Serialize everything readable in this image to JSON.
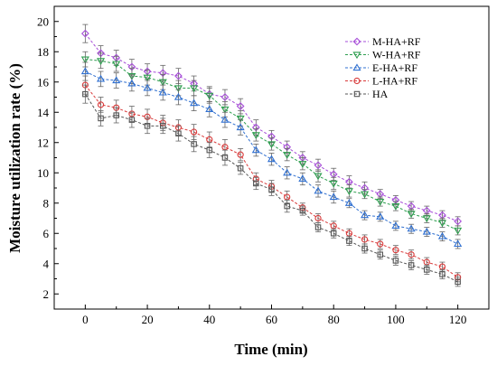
{
  "chart_data": {
    "type": "line",
    "xlabel": "Time (min)",
    "ylabel": "Moisture utilization rate (%)",
    "xlim": [
      -10,
      130
    ],
    "ylim": [
      1,
      21
    ],
    "xticks": [
      0,
      20,
      40,
      60,
      80,
      100,
      120
    ],
    "yticks": [
      2,
      4,
      6,
      8,
      10,
      12,
      14,
      16,
      18,
      20
    ],
    "legend_position": "top-right",
    "error_bars": true,
    "x": [
      0,
      5,
      10,
      15,
      20,
      25,
      30,
      35,
      40,
      45,
      50,
      55,
      60,
      65,
      70,
      75,
      80,
      85,
      90,
      95,
      100,
      105,
      110,
      115,
      120
    ],
    "series": [
      {
        "name": "M-HA+RF",
        "color": "#a64cd8",
        "marker": "diamond",
        "values": [
          19.2,
          17.9,
          17.6,
          17.0,
          16.7,
          16.6,
          16.4,
          15.9,
          15.2,
          15.0,
          14.4,
          13.0,
          12.4,
          11.7,
          11.0,
          10.5,
          9.9,
          9.4,
          9.0,
          8.6,
          8.2,
          7.8,
          7.5,
          7.2,
          6.8
        ],
        "errors": [
          0.6,
          0.5,
          0.5,
          0.5,
          0.5,
          0.5,
          0.5,
          0.5,
          0.5,
          0.5,
          0.5,
          0.5,
          0.4,
          0.4,
          0.4,
          0.4,
          0.4,
          0.4,
          0.4,
          0.3,
          0.3,
          0.3,
          0.3,
          0.3,
          0.3
        ]
      },
      {
        "name": "W-HA+RF",
        "color": "#2e9e4f",
        "marker": "triangle-down",
        "values": [
          17.5,
          17.4,
          17.2,
          16.4,
          16.3,
          16.0,
          15.6,
          15.6,
          15.1,
          14.2,
          13.6,
          12.5,
          11.9,
          11.2,
          10.6,
          9.8,
          9.3,
          8.8,
          8.6,
          8.1,
          7.8,
          7.3,
          7.0,
          6.7,
          6.2
        ],
        "errors": [
          0.5,
          0.5,
          0.5,
          0.5,
          0.5,
          0.5,
          0.5,
          0.5,
          0.5,
          0.5,
          0.5,
          0.4,
          0.4,
          0.4,
          0.4,
          0.4,
          0.4,
          0.4,
          0.3,
          0.3,
          0.3,
          0.3,
          0.3,
          0.3,
          0.3
        ]
      },
      {
        "name": "E-HA+RF",
        "color": "#2f6fd0",
        "marker": "triangle-up",
        "values": [
          16.7,
          16.2,
          16.1,
          15.9,
          15.6,
          15.3,
          15.0,
          14.6,
          14.2,
          13.5,
          13.0,
          11.5,
          10.9,
          10.0,
          9.6,
          8.8,
          8.4,
          8.0,
          7.2,
          7.1,
          6.5,
          6.3,
          6.1,
          5.8,
          5.3
        ],
        "errors": [
          0.6,
          0.5,
          0.5,
          0.5,
          0.5,
          0.5,
          0.5,
          0.5,
          0.5,
          0.5,
          0.5,
          0.4,
          0.4,
          0.4,
          0.4,
          0.4,
          0.4,
          0.3,
          0.3,
          0.3,
          0.3,
          0.3,
          0.3,
          0.3,
          0.3
        ]
      },
      {
        "name": "L-HA+RF",
        "color": "#d83a3a",
        "marker": "circle",
        "values": [
          15.8,
          14.5,
          14.3,
          13.9,
          13.7,
          13.3,
          13.0,
          12.7,
          12.2,
          11.7,
          11.2,
          9.6,
          9.1,
          8.4,
          7.7,
          7.0,
          6.5,
          6.0,
          5.6,
          5.3,
          4.9,
          4.6,
          4.1,
          3.8,
          3.1
        ],
        "errors": [
          0.6,
          0.5,
          0.5,
          0.5,
          0.5,
          0.5,
          0.5,
          0.5,
          0.5,
          0.5,
          0.4,
          0.4,
          0.4,
          0.4,
          0.3,
          0.3,
          0.3,
          0.3,
          0.3,
          0.3,
          0.3,
          0.3,
          0.3,
          0.3,
          0.3
        ]
      },
      {
        "name": "HA",
        "color": "#555555",
        "marker": "square",
        "values": [
          15.2,
          13.6,
          13.8,
          13.5,
          13.1,
          13.1,
          12.6,
          11.9,
          11.5,
          11.0,
          10.3,
          9.3,
          8.9,
          7.8,
          7.5,
          6.4,
          6.0,
          5.5,
          5.0,
          4.6,
          4.2,
          3.9,
          3.6,
          3.3,
          2.8
        ],
        "errors": [
          0.6,
          0.5,
          0.5,
          0.5,
          0.5,
          0.5,
          0.5,
          0.5,
          0.5,
          0.5,
          0.4,
          0.4,
          0.4,
          0.4,
          0.3,
          0.3,
          0.3,
          0.3,
          0.3,
          0.3,
          0.3,
          0.3,
          0.3,
          0.3,
          0.3
        ]
      }
    ]
  }
}
